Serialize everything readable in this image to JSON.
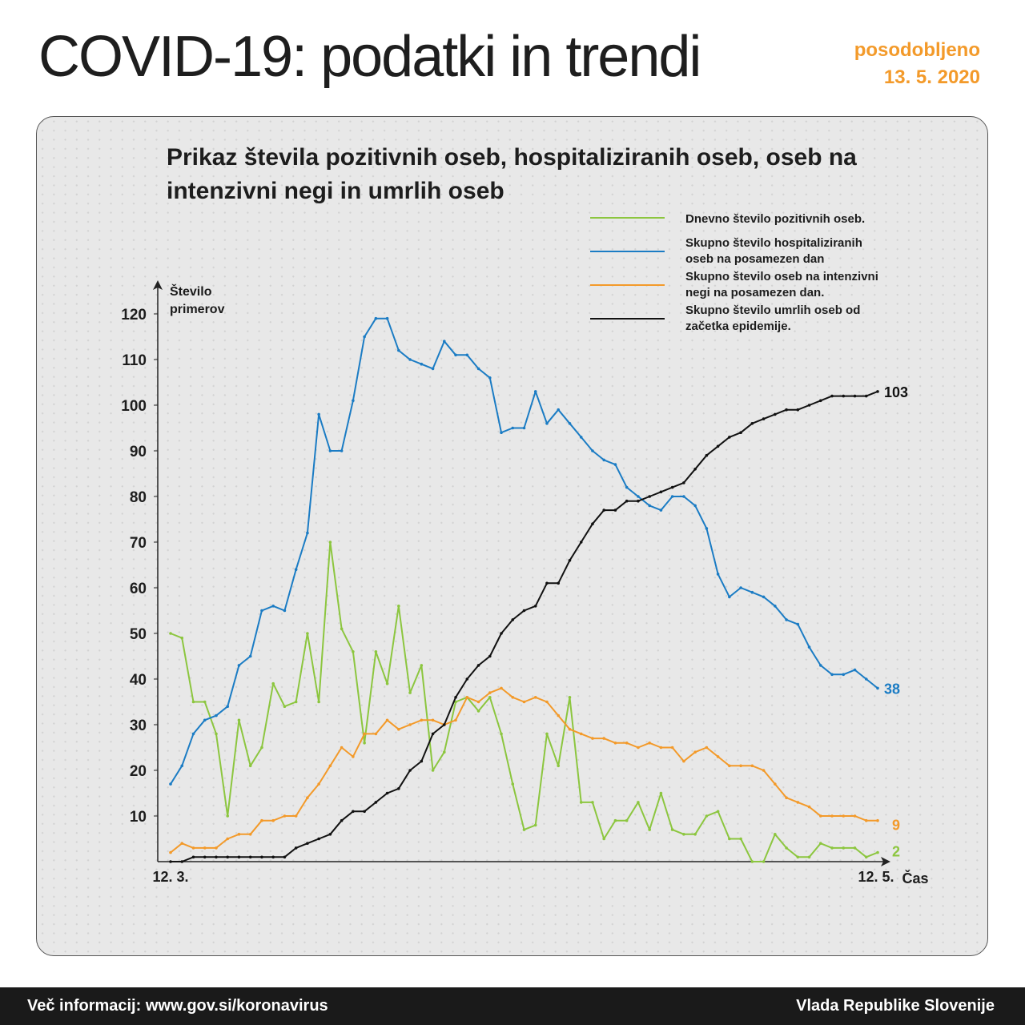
{
  "header": {
    "title": "COVID-19: podatki in trendi",
    "updated_label": "posodobljeno",
    "updated_date": "13. 5. 2020"
  },
  "footer": {
    "info": "Več informacij: www.gov.si/koronavirus",
    "org": "Vlada Republike Slovenije"
  },
  "chart_data": {
    "type": "line",
    "title": "Prikaz števila pozitivnih oseb, hospitaliziranih oseb, oseb na intenzivni negi in umrlih oseb",
    "ylabel_line1": "Število",
    "ylabel_line2": "primerov",
    "xlabel": "Čas",
    "x_start_label": "12. 3.",
    "x_end_label": "12. 5.",
    "ylim": [
      0,
      120
    ],
    "yticks": [
      10,
      20,
      30,
      40,
      50,
      60,
      70,
      80,
      90,
      100,
      110,
      120
    ],
    "grid": "dotted",
    "legend_position": "top-right",
    "series": [
      {
        "name": "Dnevno število pozitivnih oseb.",
        "color": "#8cc63f",
        "end_label": "2",
        "values": [
          50,
          49,
          35,
          35,
          28,
          10,
          31,
          21,
          25,
          39,
          34,
          35,
          50,
          35,
          70,
          51,
          46,
          26,
          46,
          39,
          56,
          37,
          43,
          20,
          24,
          35,
          36,
          33,
          36,
          28,
          17,
          7,
          8,
          28,
          21,
          36,
          13,
          13,
          5,
          9,
          9,
          13,
          7,
          15,
          7,
          6,
          6,
          10,
          11,
          5,
          5,
          0,
          0,
          6,
          3,
          1,
          1,
          4,
          3,
          3,
          3,
          1,
          2
        ]
      },
      {
        "name": "Skupno število hospitaliziranih oseb na posamezen dan",
        "color": "#1b7cc4",
        "end_label": "38",
        "values": [
          17,
          21,
          28,
          31,
          32,
          34,
          43,
          45,
          55,
          56,
          55,
          64,
          72,
          98,
          90,
          90,
          101,
          115,
          119,
          119,
          112,
          110,
          109,
          108,
          114,
          111,
          111,
          108,
          106,
          94,
          95,
          95,
          103,
          96,
          99,
          96,
          93,
          90,
          88,
          87,
          82,
          80,
          78,
          77,
          80,
          80,
          78,
          73,
          63,
          58,
          60,
          59,
          58,
          56,
          53,
          52,
          47,
          43,
          41,
          41,
          42,
          40,
          38
        ]
      },
      {
        "name": "Skupno število oseb na intenzivni negi na posamezen dan.",
        "color": "#f39a2a",
        "end_label": "9",
        "values": [
          2,
          4,
          3,
          3,
          3,
          5,
          6,
          6,
          9,
          9,
          10,
          10,
          14,
          17,
          21,
          25,
          23,
          28,
          28,
          31,
          29,
          30,
          31,
          31,
          30,
          31,
          36,
          35,
          37,
          38,
          36,
          35,
          36,
          35,
          32,
          29,
          28,
          27,
          27,
          26,
          26,
          25,
          26,
          25,
          25,
          22,
          24,
          25,
          23,
          21,
          21,
          21,
          20,
          17,
          14,
          13,
          12,
          10,
          10,
          10,
          10,
          9,
          9
        ]
      },
      {
        "name": "Skupno število umrlih oseb od začetka epidemije.",
        "color": "#111111",
        "end_label": "103",
        "values": [
          0,
          0,
          1,
          1,
          1,
          1,
          1,
          1,
          1,
          1,
          1,
          3,
          4,
          5,
          6,
          9,
          11,
          11,
          13,
          15,
          16,
          20,
          22,
          28,
          30,
          36,
          40,
          43,
          45,
          50,
          53,
          55,
          56,
          61,
          61,
          66,
          70,
          74,
          77,
          77,
          79,
          79,
          80,
          81,
          82,
          83,
          86,
          89,
          91,
          93,
          94,
          96,
          97,
          98,
          99,
          99,
          100,
          101,
          102,
          102,
          102,
          102,
          103
        ]
      }
    ]
  }
}
